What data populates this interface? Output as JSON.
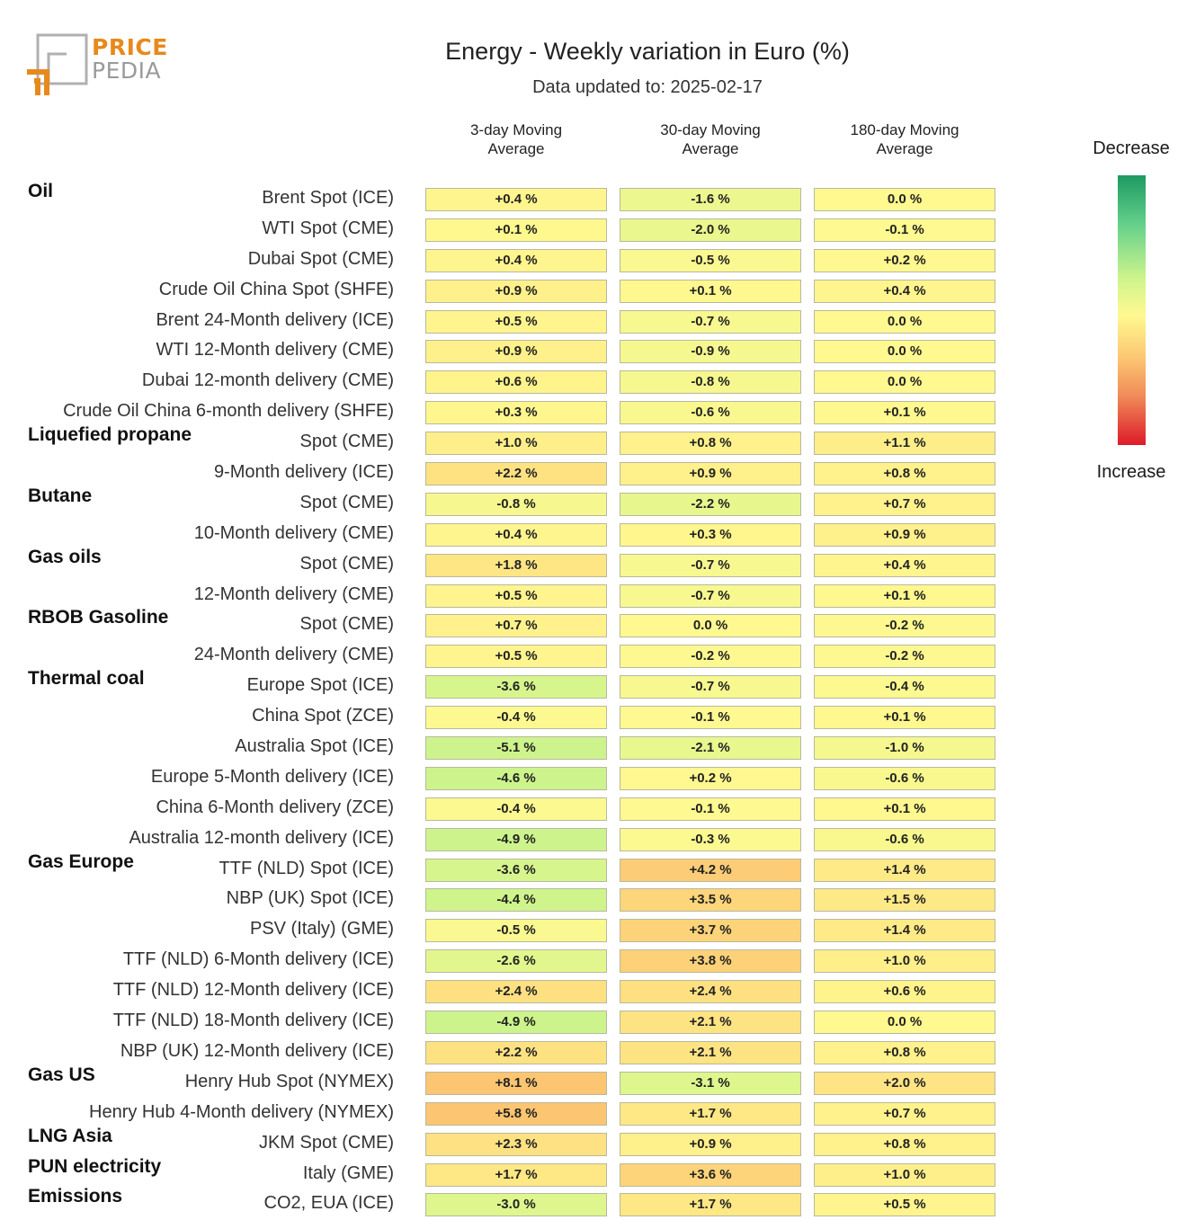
{
  "logo": {
    "word1": "PRICE",
    "word2": "PEDIA"
  },
  "header": {
    "title": "Energy - Weekly variation in Euro (%)",
    "subtitle": "Data updated to: 2025-02-17"
  },
  "columns": [
    "3-day Moving\nAverage",
    "30-day Moving\nAverage",
    "180-day Moving\nAverage"
  ],
  "legend": {
    "top_label": "Decrease",
    "bottom_label": "Increase"
  },
  "colors": {
    "strong_decrease": "#1e9961",
    "decrease": "#cdf48c",
    "neutral": "#fff990",
    "increase": "#fcc571",
    "strong_increase": "#dd1b2a"
  },
  "chart_data": {
    "type": "table",
    "title": "Energy - Weekly variation in Euro (%)",
    "unit": "%",
    "columns": [
      "3-day Moving Average",
      "30-day Moving Average",
      "180-day Moving Average"
    ],
    "rows": [
      {
        "group": "Oil",
        "name": "Brent Spot (ICE)",
        "values": [
          "+0.4 %",
          "-1.6 %",
          "0.0 %"
        ]
      },
      {
        "group": "",
        "name": "WTI Spot (CME)",
        "values": [
          "+0.1 %",
          "-2.0 %",
          "-0.1 %"
        ]
      },
      {
        "group": "",
        "name": "Dubai Spot (CME)",
        "values": [
          "+0.4 %",
          "-0.5 %",
          "+0.2 %"
        ]
      },
      {
        "group": "",
        "name": "Crude Oil China Spot (SHFE)",
        "values": [
          "+0.9 %",
          "+0.1 %",
          "+0.4 %"
        ]
      },
      {
        "group": "",
        "name": "Brent 24-Month delivery (ICE)",
        "values": [
          "+0.5 %",
          "-0.7 %",
          "0.0 %"
        ]
      },
      {
        "group": "",
        "name": "WTI 12-Month delivery (CME)",
        "values": [
          "+0.9 %",
          "-0.9 %",
          "0.0 %"
        ]
      },
      {
        "group": "",
        "name": "Dubai 12-month delivery (CME)",
        "values": [
          "+0.6 %",
          "-0.8 %",
          "0.0 %"
        ]
      },
      {
        "group": "",
        "name": "Crude Oil China 6-month delivery (SHFE)",
        "values": [
          "+0.3 %",
          "-0.6 %",
          "+0.1 %"
        ]
      },
      {
        "group": "Liquefied propane",
        "name": "Spot (CME)",
        "values": [
          "+1.0 %",
          "+0.8 %",
          "+1.1 %"
        ]
      },
      {
        "group": "",
        "name": "9-Month delivery (ICE)",
        "values": [
          "+2.2 %",
          "+0.9 %",
          "+0.8 %"
        ]
      },
      {
        "group": "Butane",
        "name": "Spot (CME)",
        "values": [
          "-0.8 %",
          "-2.2 %",
          "+0.7 %"
        ]
      },
      {
        "group": "",
        "name": "10-Month delivery (CME)",
        "values": [
          "+0.4 %",
          "+0.3 %",
          "+0.9 %"
        ]
      },
      {
        "group": "Gas oils",
        "name": "Spot (CME)",
        "values": [
          "+1.8 %",
          "-0.7 %",
          "+0.4 %"
        ]
      },
      {
        "group": "",
        "name": "12-Month delivery (CME)",
        "values": [
          "+0.5 %",
          "-0.7 %",
          "+0.1 %"
        ]
      },
      {
        "group": "RBOB Gasoline",
        "name": "Spot (CME)",
        "values": [
          "+0.7 %",
          "0.0 %",
          "-0.2 %"
        ]
      },
      {
        "group": "",
        "name": "24-Month delivery (CME)",
        "values": [
          "+0.5 %",
          "-0.2 %",
          "-0.2 %"
        ]
      },
      {
        "group": "Thermal coal",
        "name": "Europe Spot (ICE)",
        "values": [
          "-3.6 %",
          "-0.7 %",
          "-0.4 %"
        ]
      },
      {
        "group": "",
        "name": "China Spot (ZCE)",
        "values": [
          "-0.4 %",
          "-0.1 %",
          "+0.1 %"
        ]
      },
      {
        "group": "",
        "name": "Australia Spot (ICE)",
        "values": [
          "-5.1 %",
          "-2.1 %",
          "-1.0 %"
        ]
      },
      {
        "group": "",
        "name": "Europe 5-Month delivery (ICE)",
        "values": [
          "-4.6 %",
          "+0.2 %",
          "-0.6 %"
        ]
      },
      {
        "group": "",
        "name": "China 6-Month delivery (ZCE)",
        "values": [
          "-0.4 %",
          "-0.1 %",
          "+0.1 %"
        ]
      },
      {
        "group": "",
        "name": "Australia 12-month delivery (ICE)",
        "values": [
          "-4.9 %",
          "-0.3 %",
          "-0.6 %"
        ]
      },
      {
        "group": "Gas Europe",
        "name": "TTF (NLD) Spot (ICE)",
        "values": [
          "-3.6 %",
          "+4.2 %",
          "+1.4 %"
        ]
      },
      {
        "group": "",
        "name": "NBP (UK) Spot (ICE)",
        "values": [
          "-4.4 %",
          "+3.5 %",
          "+1.5 %"
        ]
      },
      {
        "group": "",
        "name": "PSV (Italy) (GME)",
        "values": [
          "-0.5 %",
          "+3.7 %",
          "+1.4 %"
        ]
      },
      {
        "group": "",
        "name": "TTF (NLD) 6-Month delivery (ICE)",
        "values": [
          "-2.6 %",
          "+3.8 %",
          "+1.0 %"
        ]
      },
      {
        "group": "",
        "name": "TTF (NLD) 12-Month delivery (ICE)",
        "values": [
          "+2.4 %",
          "+2.4 %",
          "+0.6 %"
        ]
      },
      {
        "group": "",
        "name": "TTF (NLD) 18-Month delivery (ICE)",
        "values": [
          "-4.9 %",
          "+2.1 %",
          "0.0 %"
        ]
      },
      {
        "group": "",
        "name": "NBP (UK) 12-Month delivery (ICE)",
        "values": [
          "+2.2 %",
          "+2.1 %",
          "+0.8 %"
        ]
      },
      {
        "group": "Gas US",
        "name": "Henry Hub Spot (NYMEX)",
        "values": [
          "+8.1 %",
          "-3.1 %",
          "+2.0 %"
        ]
      },
      {
        "group": "",
        "name": "Henry Hub 4-Month delivery (NYMEX)",
        "values": [
          "+5.8 %",
          "+1.7 %",
          "+0.7 %"
        ]
      },
      {
        "group": "LNG Asia",
        "name": "JKM Spot (CME)",
        "values": [
          "+2.3 %",
          "+0.9 %",
          "+0.8 %"
        ]
      },
      {
        "group": "PUN electricity",
        "name": "Italy (GME)",
        "values": [
          "+1.7 %",
          "+3.6 %",
          "+1.0 %"
        ]
      },
      {
        "group": "Emissions",
        "name": "CO2, EUA (ICE)",
        "values": [
          "-3.0 %",
          "+1.7 %",
          "+0.5 %"
        ]
      }
    ]
  }
}
